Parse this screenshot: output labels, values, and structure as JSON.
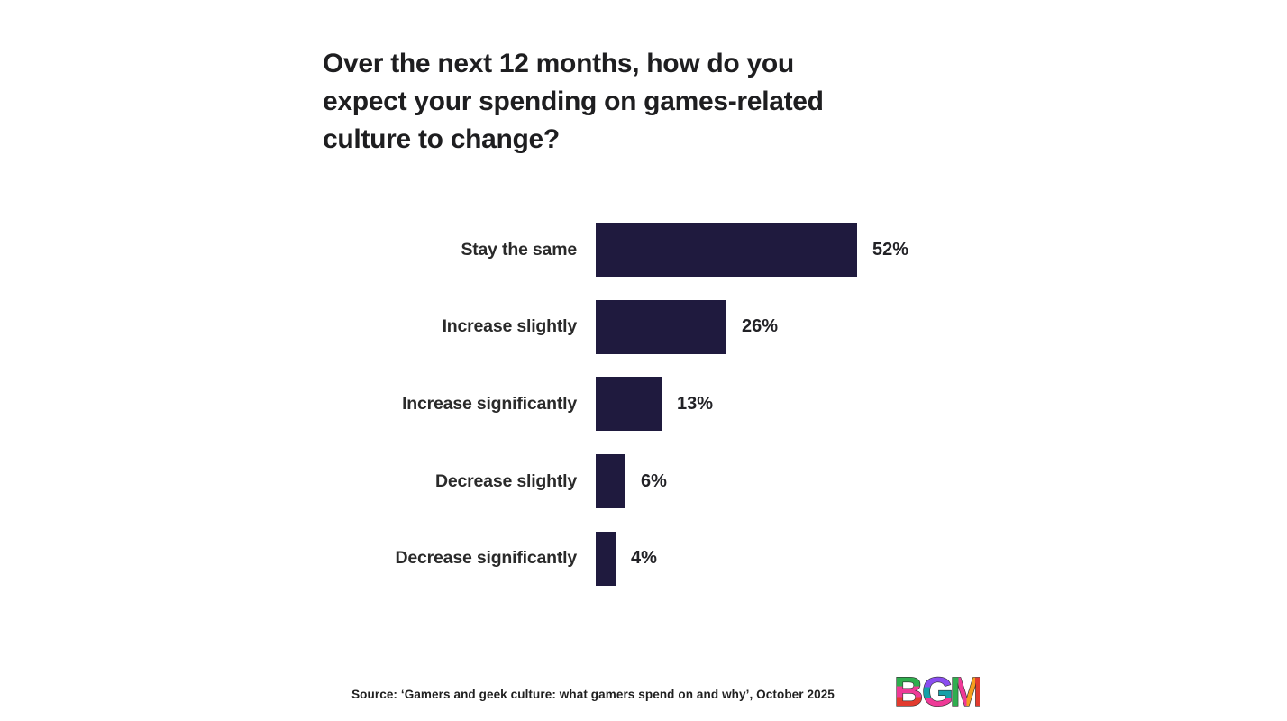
{
  "header": {
    "title_lines": [
      "Over the next 12 months, how do you",
      "expect your spending on games-related",
      "culture to change?"
    ]
  },
  "chart_data": {
    "type": "bar",
    "orientation": "horizontal",
    "title": "Over the next 12 months, how do you expect your spending on games-related culture to change?",
    "categories": [
      "Stay the same",
      "Increase slightly",
      "Increase significantly",
      "Decrease slightly",
      "Decrease significantly"
    ],
    "values": [
      52,
      26,
      13,
      6,
      4
    ],
    "value_suffix": "%",
    "value_labels": [
      "52%",
      "26%",
      "13%",
      "6%",
      "4%"
    ],
    "xlabel": "",
    "ylabel": "",
    "xlim": [
      0,
      100
    ],
    "grid": false,
    "legend": false,
    "bar_color": "#1f1a3e",
    "background_color": "#ffffff"
  },
  "footer": {
    "source": "Source: ‘Gamers and geek culture: what gamers spend on and why’, October 2025",
    "logo": {
      "letters": [
        "B",
        "G",
        "M"
      ],
      "colors": {
        "pink": "#ee3a97",
        "green": "#2fae4e",
        "red": "#e23b2e",
        "purple": "#8a4df0",
        "teal": "#14a0a8",
        "orange": "#f59f1d"
      }
    }
  }
}
